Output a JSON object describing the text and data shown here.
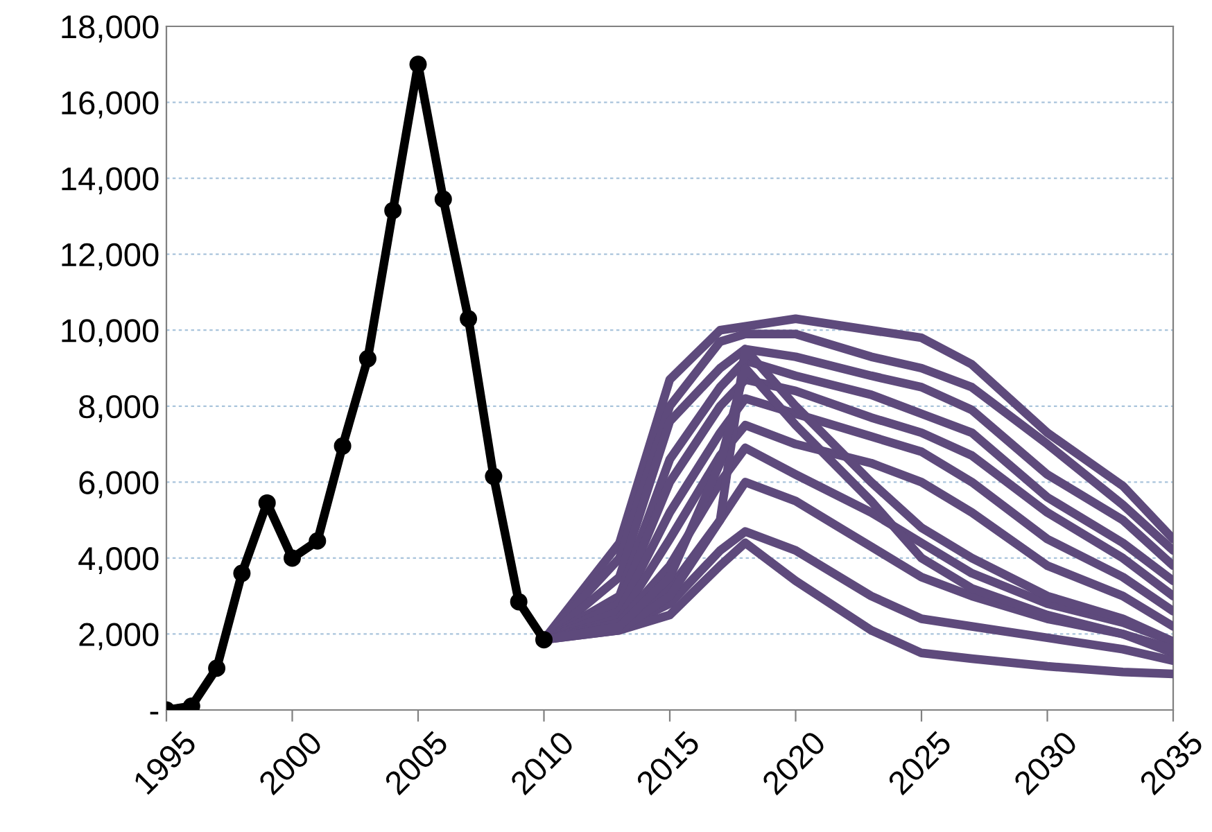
{
  "chart_data": {
    "type": "line",
    "xlim": [
      1995,
      2035
    ],
    "xticks": [
      1995,
      2000,
      2005,
      2010,
      2015,
      2020,
      2025,
      2030,
      2035
    ],
    "ylim": [
      0,
      18000
    ],
    "yticks": [
      {
        "value": 0,
        "label": "-"
      },
      {
        "value": 2000,
        "label": "2,000"
      },
      {
        "value": 4000,
        "label": "4,000"
      },
      {
        "value": 6000,
        "label": "6,000"
      },
      {
        "value": 8000,
        "label": "8,000"
      },
      {
        "value": 10000,
        "label": "10,000"
      },
      {
        "value": 12000,
        "label": "12,000"
      },
      {
        "value": 14000,
        "label": "14,000"
      },
      {
        "value": 16000,
        "label": "16,000"
      },
      {
        "value": 18000,
        "label": "18,000"
      }
    ],
    "grid": "y",
    "legend": false,
    "line_style": "solid",
    "series": [
      {
        "color": "#5e4a7c",
        "marker": "none",
        "x": [
          2010,
          2013,
          2015,
          2017,
          2018,
          2020,
          2023,
          2025,
          2027,
          2030,
          2033,
          2035
        ],
        "values": [
          1850,
          4400,
          8700,
          10000,
          10100,
          10300,
          10000,
          9800,
          9100,
          7300,
          5900,
          4500
        ]
      },
      {
        "color": "#5e4a7c",
        "marker": "none",
        "x": [
          2010,
          2013,
          2015,
          2017,
          2018,
          2020,
          2023,
          2025,
          2027,
          2030,
          2033,
          2035
        ],
        "values": [
          1850,
          4000,
          8000,
          9700,
          9900,
          9900,
          9300,
          9000,
          8500,
          7000,
          5400,
          4200
        ]
      },
      {
        "color": "#5e4a7c",
        "marker": "none",
        "x": [
          2010,
          2013,
          2015,
          2017,
          2018,
          2020,
          2023,
          2025,
          2027,
          2030,
          2033,
          2035
        ],
        "values": [
          1850,
          3500,
          7600,
          9000,
          9500,
          9300,
          8800,
          8500,
          7900,
          6200,
          5000,
          3800
        ]
      },
      {
        "color": "#5e4a7c",
        "marker": "none",
        "x": [
          2010,
          2013,
          2015,
          2017,
          2018,
          2020,
          2023,
          2025,
          2027,
          2030,
          2033,
          2035
        ],
        "values": [
          1850,
          3000,
          6600,
          8500,
          9200,
          8800,
          8300,
          7800,
          7300,
          5600,
          4400,
          3400
        ]
      },
      {
        "color": "#5e4a7c",
        "marker": "none",
        "x": [
          2010,
          2013,
          2015,
          2017,
          2018,
          2020,
          2023,
          2025,
          2027,
          2030,
          2033,
          2035
        ],
        "values": [
          1850,
          2800,
          6000,
          8000,
          8700,
          8400,
          7700,
          7300,
          6700,
          5200,
          4000,
          3000
        ]
      },
      {
        "color": "#5e4a7c",
        "marker": "none",
        "x": [
          2010,
          2013,
          2015,
          2017,
          2018,
          2020,
          2023,
          2025,
          2027,
          2030,
          2033,
          2035
        ],
        "values": [
          1850,
          2600,
          5200,
          7300,
          8200,
          7800,
          7200,
          6800,
          6000,
          4500,
          3500,
          2600
        ]
      },
      {
        "color": "#5e4a7c",
        "marker": "none",
        "x": [
          2010,
          2013,
          2015,
          2017,
          2018,
          2020,
          2023,
          2025,
          2027,
          2030,
          2033,
          2035
        ],
        "values": [
          1850,
          2400,
          4500,
          6700,
          7500,
          7000,
          6500,
          6000,
          5200,
          3800,
          3000,
          2200
        ]
      },
      {
        "color": "#5e4a7c",
        "marker": "none",
        "x": [
          2010,
          2013,
          2015,
          2017,
          2018,
          2020,
          2023,
          2025,
          2027,
          2030,
          2033,
          2035
        ],
        "values": [
          1850,
          2300,
          3800,
          6000,
          6900,
          6200,
          5200,
          4400,
          3600,
          2800,
          2300,
          1800
        ]
      },
      {
        "color": "#5e4a7c",
        "marker": "none",
        "x": [
          2010,
          2013,
          2015,
          2017,
          2018,
          2020,
          2023,
          2025,
          2027,
          2030,
          2033,
          2035
        ],
        "values": [
          1850,
          2200,
          3200,
          5000,
          6000,
          5500,
          4300,
          3500,
          3000,
          2400,
          2000,
          1500
        ]
      },
      {
        "color": "#5e4a7c",
        "marker": "none",
        "x": [
          2010,
          2013,
          2015,
          2017,
          2018,
          2020,
          2023,
          2025,
          2027,
          2030,
          2033,
          2035
        ],
        "values": [
          1850,
          2150,
          2800,
          4200,
          4700,
          4200,
          3000,
          2400,
          2200,
          1900,
          1600,
          1300
        ]
      },
      {
        "color": "#5e4a7c",
        "marker": "none",
        "x": [
          2010,
          2013,
          2015,
          2017,
          2018,
          2020,
          2023,
          2025,
          2027,
          2030,
          2033,
          2035
        ],
        "values": [
          1850,
          2100,
          2500,
          3800,
          4400,
          3400,
          2100,
          1500,
          1350,
          1150,
          1000,
          950
        ]
      },
      {
        "color": "#5e4a7c",
        "marker": "none",
        "x": [
          2010,
          2013,
          2015,
          2017,
          2018,
          2020,
          2023,
          2025,
          2027,
          2030,
          2033,
          2035
        ],
        "values": [
          1850,
          2100,
          3000,
          5000,
          9500,
          8000,
          6000,
          4800,
          4000,
          3000,
          2400,
          1800
        ]
      },
      {
        "color": "#5e4a7c",
        "marker": "none",
        "x": [
          2010,
          2013,
          2015,
          2017,
          2018,
          2020,
          2023,
          2025,
          2027,
          2030,
          2033,
          2035
        ],
        "values": [
          1850,
          2200,
          3500,
          6500,
          9000,
          7500,
          5500,
          4000,
          3200,
          2500,
          2000,
          1600
        ]
      },
      {
        "color": "#000000",
        "marker": "circle",
        "x": [
          1995,
          1996,
          1997,
          1998,
          1999,
          2000,
          2001,
          2002,
          2003,
          2004,
          2005,
          2006,
          2007,
          2008,
          2009,
          2010
        ],
        "values": [
          0,
          100,
          1100,
          3600,
          5450,
          4000,
          4450,
          6950,
          9250,
          13150,
          17000,
          13450,
          10300,
          6150,
          2850,
          1850
        ]
      }
    ]
  }
}
